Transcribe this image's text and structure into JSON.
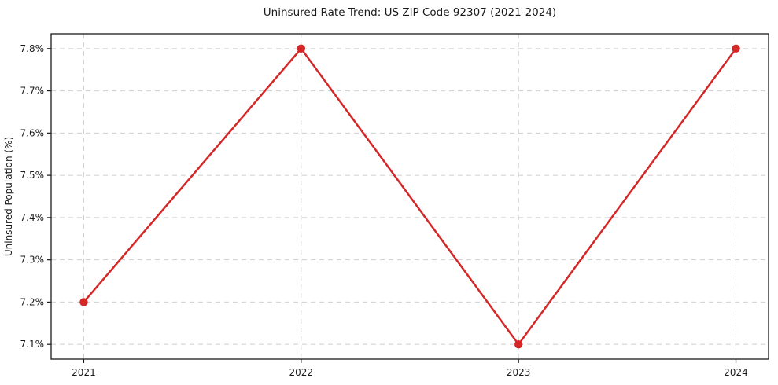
{
  "chart_data": {
    "type": "line",
    "title": "Uninsured Rate Trend: US ZIP Code 92307 (2021-2024)",
    "xlabel": "",
    "ylabel": "Uninsured Population (%)",
    "x": [
      2021,
      2022,
      2023,
      2024
    ],
    "x_tick_labels": [
      "2021",
      "2022",
      "2023",
      "2024"
    ],
    "values": [
      7.2,
      7.8,
      7.1,
      7.8
    ],
    "y_ticks": [
      7.1,
      7.2,
      7.3,
      7.4,
      7.5,
      7.6,
      7.7,
      7.8
    ],
    "y_tick_labels": [
      "7.1%",
      "7.2%",
      "7.3%",
      "7.4%",
      "7.5%",
      "7.6%",
      "7.7%",
      "7.8%"
    ],
    "xlim": [
      2020.85,
      2024.15
    ],
    "ylim": [
      7.065,
      7.835
    ],
    "grid": true,
    "grid_style": "dashed",
    "legend_position": "none",
    "colors": {
      "line": "#d62728",
      "marker": "#d62728",
      "grid": "#cfcfcf",
      "frame": "#1a1a1a",
      "text": "#1a1a1a",
      "background": "#ffffff"
    }
  }
}
